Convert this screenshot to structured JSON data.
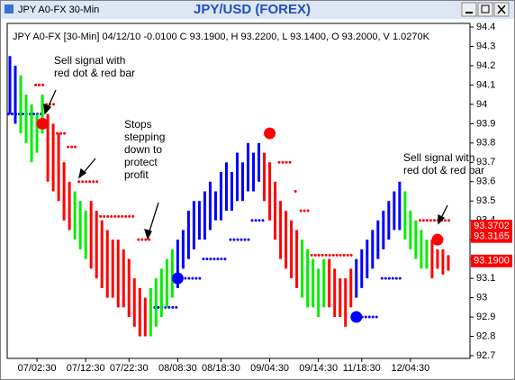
{
  "window": {
    "title": "JPY A0-FX 30-Min"
  },
  "chart_data": {
    "type": "bar",
    "title": "JPY/USD (FOREX)",
    "info": "JPY A0-FX [30-Min] 04/12/10 -0.0100 C 93.1900, H 93.2200, L 93.1400, O 93.2000, V 1.0270K",
    "ylim": [
      92.7,
      94.4
    ],
    "yticks": [
      94.4,
      94.3,
      94.2,
      94.1,
      94,
      93.9,
      93.8,
      93.7,
      93.6,
      93.5,
      93.4,
      93.3,
      93.2,
      93.1,
      93,
      92.9,
      92.8,
      92.7
    ],
    "xlim": [
      -0.5,
      85
    ],
    "xticks": [
      {
        "value": 5,
        "label": "07/02:30"
      },
      {
        "value": 14,
        "label": "07/12:30"
      },
      {
        "value": 22,
        "label": "07/22:30"
      },
      {
        "value": 31,
        "label": "08/08:30"
      },
      {
        "value": 39,
        "label": "08/18:30"
      },
      {
        "value": 48,
        "label": "09/04:30"
      },
      {
        "value": 57,
        "label": "09/14:30"
      },
      {
        "value": 65,
        "label": "11/18:30"
      },
      {
        "value": 74,
        "label": "12/04:30"
      }
    ],
    "runs": [
      {
        "color": "#0000ff",
        "high": [
          94.25,
          94.2
        ],
        "low": [
          93.95,
          93.9
        ]
      },
      {
        "color": "#00ee00",
        "high": [
          94.15,
          94.05,
          94.0,
          93.95,
          94.05
        ],
        "low": [
          93.85,
          93.8,
          93.7,
          93.75,
          93.85
        ]
      },
      {
        "color": "#ff0000",
        "high": [
          93.95,
          93.9,
          93.85,
          93.7,
          93.6
        ],
        "low": [
          93.6,
          93.55,
          93.5,
          93.4,
          93.35
        ]
      },
      {
        "color": "#00ee00",
        "high": [
          93.55,
          93.5,
          93.45
        ],
        "low": [
          93.3,
          93.25,
          93.2
        ]
      },
      {
        "color": "#ff0000",
        "high": [
          93.5,
          93.45,
          93.4,
          93.35,
          93.3,
          93.3,
          93.25,
          93.2,
          93.1,
          93.05,
          93.0
        ],
        "low": [
          93.15,
          93.1,
          93.05,
          93.0,
          93.0,
          92.95,
          92.95,
          92.9,
          92.85,
          92.8,
          92.8
        ]
      },
      {
        "color": "#00ee00",
        "high": [
          93.05,
          93.1,
          93.15,
          93.2,
          93.25
        ],
        "low": [
          92.8,
          92.85,
          92.9,
          92.95,
          93.0
        ]
      },
      {
        "color": "#0000ff",
        "high": [
          93.3,
          93.35,
          93.45,
          93.5,
          93.5,
          93.55,
          93.6,
          93.55,
          93.65,
          93.7,
          93.65,
          93.75,
          93.7,
          93.8,
          93.75,
          93.8
        ],
        "low": [
          93.05,
          93.15,
          93.2,
          93.25,
          93.3,
          93.3,
          93.35,
          93.4,
          93.4,
          93.45,
          93.45,
          93.5,
          93.5,
          93.55,
          93.55,
          93.6
        ]
      },
      {
        "color": "#ff0000",
        "high": [
          93.75,
          93.7,
          93.6,
          93.5,
          93.45,
          93.4,
          93.35
        ],
        "low": [
          93.5,
          93.4,
          93.3,
          93.2,
          93.15,
          93.1,
          93.05
        ]
      },
      {
        "color": "#00ee00",
        "high": [
          93.3,
          93.25,
          93.2,
          93.15,
          93.2
        ],
        "low": [
          93.0,
          92.95,
          92.95,
          92.9,
          92.95
        ]
      },
      {
        "color": "#ff0000",
        "high": [
          93.2,
          93.15,
          93.1,
          93.1,
          93.15
        ],
        "low": [
          92.95,
          92.9,
          92.9,
          92.85,
          92.95
        ]
      },
      {
        "color": "#0000ff",
        "high": [
          93.2,
          93.25,
          93.3,
          93.35,
          93.4,
          93.45,
          93.5,
          93.55,
          93.6
        ],
        "low": [
          93.0,
          93.05,
          93.1,
          93.15,
          93.2,
          93.25,
          93.3,
          93.35,
          93.35
        ]
      },
      {
        "color": "#00ee00",
        "high": [
          93.55,
          93.45,
          93.4,
          93.35,
          93.3
        ],
        "low": [
          93.3,
          93.25,
          93.2,
          93.15,
          93.15
        ]
      },
      {
        "color": "#ff0000",
        "high": [
          93.3,
          93.25,
          93.25,
          93.22
        ],
        "low": [
          93.1,
          93.15,
          93.12,
          93.14
        ]
      }
    ],
    "stops": [
      {
        "color": "#0000ff",
        "value": 93.95,
        "from": 0,
        "to": 6
      },
      {
        "color": "#ff0000",
        "value": 94.1,
        "from": 5,
        "to": 6
      },
      {
        "color": "#ff0000",
        "value": 94.0,
        "from": 7,
        "to": 8
      },
      {
        "color": "#ff0000",
        "value": 93.85,
        "from": 9,
        "to": 10
      },
      {
        "color": "#ff0000",
        "value": 93.78,
        "from": 11,
        "to": 12
      },
      {
        "color": "#ff0000",
        "value": 93.6,
        "from": 13,
        "to": 16
      },
      {
        "color": "#ff0000",
        "value": 93.42,
        "from": 17,
        "to": 23
      },
      {
        "color": "#ff0000",
        "value": 93.3,
        "from": 24,
        "to": 26
      },
      {
        "color": "#0000ff",
        "value": 92.95,
        "from": 27,
        "to": 31
      },
      {
        "color": "#0000ff",
        "value": 93.1,
        "from": 32,
        "to": 35
      },
      {
        "color": "#0000ff",
        "value": 93.2,
        "from": 36,
        "to": 40
      },
      {
        "color": "#0000ff",
        "value": 93.3,
        "from": 41,
        "to": 44
      },
      {
        "color": "#0000ff",
        "value": 93.4,
        "from": 45,
        "to": 47
      },
      {
        "color": "#ff0000",
        "value": 93.7,
        "from": 50,
        "to": 52
      },
      {
        "color": "#ff0000",
        "value": 93.55,
        "from": 53,
        "to": 53
      },
      {
        "color": "#ff0000",
        "value": 93.45,
        "from": 54,
        "to": 55
      },
      {
        "color": "#ff0000",
        "value": 93.22,
        "from": 56,
        "to": 63
      },
      {
        "color": "#0000ff",
        "value": 92.9,
        "from": 64,
        "to": 68
      },
      {
        "color": "#0000ff",
        "value": 93.1,
        "from": 69,
        "to": 72
      },
      {
        "color": "#ff0000",
        "value": 93.4,
        "from": 76,
        "to": 81
      }
    ],
    "signals": [
      {
        "color": "#ff0000",
        "bar": 6,
        "value": 93.9
      },
      {
        "color": "#0000ff",
        "bar": 31,
        "value": 93.1
      },
      {
        "color": "#ff0000",
        "bar": 48,
        "value": 93.85
      },
      {
        "color": "#0000ff",
        "bar": 64,
        "value": 92.9
      },
      {
        "color": "#ff0000",
        "bar": 79,
        "value": 93.3
      }
    ],
    "price_labels": [
      {
        "value": 93.3702,
        "label": "93.3702",
        "color": "#ff0000"
      },
      {
        "value": 93.3165,
        "label": "93.3165",
        "color": "#ff0000"
      },
      {
        "value": 93.19,
        "label": "93.1900",
        "color": "#ff0000"
      }
    ],
    "annotations": [
      {
        "lines": [
          "Sell signal with",
          "red dot & red bar"
        ]
      },
      {
        "lines": [
          "Stops",
          "stepping",
          "down to",
          "protect",
          "profit"
        ]
      },
      {
        "lines": [
          "Sell signal with",
          "red dot & red bar"
        ]
      }
    ]
  }
}
